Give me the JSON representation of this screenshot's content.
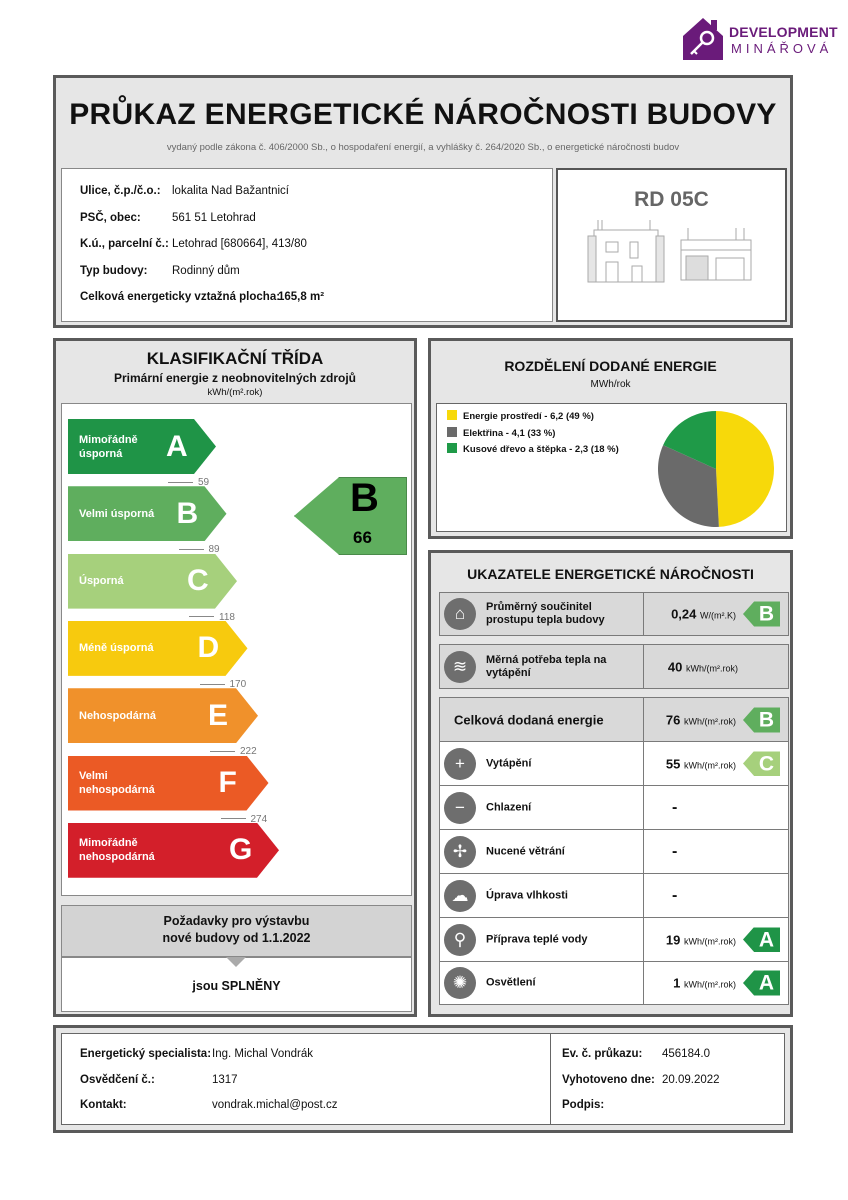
{
  "logo": {
    "line1": "DEVELOPMENT",
    "line2": "MINÁŘOVÁ",
    "color": "#6a1b7a"
  },
  "header": {
    "title": "PRŮKAZ ENERGETICKÉ NÁROČNOSTI BUDOVY",
    "subtitle": "vydaný podle zákona č. 406/2000 Sb., o hospodaření energií, a vyhlášky č. 264/2020 Sb., o energetické náročnosti budov"
  },
  "building": {
    "street_label": "Ulice, č.p./č.o.:",
    "street": "lokalita Nad Bažantnicí",
    "city_label": "PSČ, obec:",
    "city": "561 51 Letohrad",
    "parcel_label": "K.ú., parcelní č.:",
    "parcel": "Letohrad [680664], 413/80",
    "type_label": "Typ budovy:",
    "type": "Rodinný dům",
    "area_label": "Celková energeticky vztažná plocha:",
    "area": "165,8 m²",
    "code": "RD 05C"
  },
  "classification": {
    "title": "KLASIFIKAČNÍ TŘÍDA",
    "subtitle": "Primární energie z neobnovitelných zdrojů",
    "unit": "kWh/(m².rok)",
    "classes": [
      {
        "letter": "A",
        "name": "Mimořádně úsporná",
        "color": "#1f9447"
      },
      {
        "letter": "B",
        "name": "Velmi úsporná",
        "color": "#5fae5e"
      },
      {
        "letter": "C",
        "name": "Úsporná",
        "color": "#a6d07c"
      },
      {
        "letter": "D",
        "name": "Méně úsporná",
        "color": "#f7ca0e"
      },
      {
        "letter": "E",
        "name": "Nehospodárná",
        "color": "#f0912b"
      },
      {
        "letter": "F",
        "name": "Velmi nehospodárná",
        "color": "#eb5a25"
      },
      {
        "letter": "G",
        "name": "Mimořádně nehospodárná",
        "color": "#d31f2a"
      }
    ],
    "thresholds": [
      "59",
      "89",
      "118",
      "170",
      "222",
      "274"
    ],
    "result": {
      "letter": "B",
      "value": "66",
      "color": "#5fae5e"
    },
    "requirements_title": "Požadavky pro výstavbu nové budovy od 1.1.2022",
    "requirements_result": "jsou SPLNĚNY"
  },
  "distribution": {
    "title": "ROZDĚLENÍ DODANÉ ENERGIE",
    "unit": "MWh/rok",
    "legend": [
      "Energie prostředí - 6,2 (49 %)",
      "Elektřina - 4,1 (33 %)",
      "Kusové dřevo a štěpka - 2,3 (18 %)"
    ]
  },
  "chart_data": {
    "type": "pie",
    "categories": [
      "Energie prostředí",
      "Elektřina",
      "Kusové dřevo a štěpka"
    ],
    "values": [
      6.2,
      4.1,
      2.3
    ],
    "percent": [
      49,
      33,
      18
    ],
    "colors": [
      "#f7d90a",
      "#6a6a6a",
      "#1f9a48"
    ],
    "legend_position": "left"
  },
  "indicators": {
    "title": "UKAZATELE ENERGETICKÉ NÁROČNOSTI",
    "rows": [
      {
        "icon": "house-icon",
        "glyph": "⌂",
        "label": "Průměrný součinitel prostupu tepla budovy",
        "value": "0,24",
        "unit": "W/(m².K)",
        "grade": "B",
        "grade_color": "#5fae5e"
      },
      {
        "icon": "heat-thermometer-icon",
        "glyph": "≋",
        "label": "Měrná potřeba tepla na vytápění",
        "value": "40",
        "unit": "kWh/(m².rok)",
        "grade": "",
        "grade_color": ""
      },
      {
        "label": "Celková dodaná energie",
        "value": "76",
        "unit": "kWh/(m².rok)",
        "grade": "B",
        "grade_color": "#5fae5e"
      },
      {
        "icon": "heating-thermometer-icon",
        "glyph": "+",
        "label": "Vytápění",
        "value": "55",
        "unit": "kWh/(m².rok)",
        "grade": "C",
        "grade_color": "#a6d07c"
      },
      {
        "icon": "cooling-thermometer-icon",
        "glyph": "−",
        "label": "Chlazení",
        "value": "-",
        "unit": "",
        "grade": "",
        "grade_color": ""
      },
      {
        "icon": "fan-icon",
        "glyph": "✢",
        "label": "Nucené větrání",
        "value": "-",
        "unit": "",
        "grade": "",
        "grade_color": ""
      },
      {
        "icon": "humidity-cloud-icon",
        "glyph": "☁",
        "label": "Úprava vlhkosti",
        "value": "-",
        "unit": "",
        "grade": "",
        "grade_color": ""
      },
      {
        "icon": "water-tap-icon",
        "glyph": "⚲",
        "label": "Příprava teplé vody",
        "value": "19",
        "unit": "kWh/(m².rok)",
        "grade": "A",
        "grade_color": "#1f9447"
      },
      {
        "icon": "light-bulb-icon",
        "glyph": "✺",
        "label": "Osvětlení",
        "value": "1",
        "unit": "kWh/(m².rok)",
        "grade": "A",
        "grade_color": "#1f9447"
      }
    ]
  },
  "footer": {
    "specialist_label": "Energetický specialista:",
    "specialist": "Ing. Michal Vondrák",
    "cert_label": "Osvědčení č.:",
    "cert": "1317",
    "contact_label": "Kontakt:",
    "contact": "vondrak.michal@post.cz",
    "ev_label": "Ev. č. průkazu:",
    "ev": "456184.0",
    "date_label": "Vyhotoveno dne:",
    "date": "20.09.2022",
    "sign_label": "Podpis:"
  }
}
